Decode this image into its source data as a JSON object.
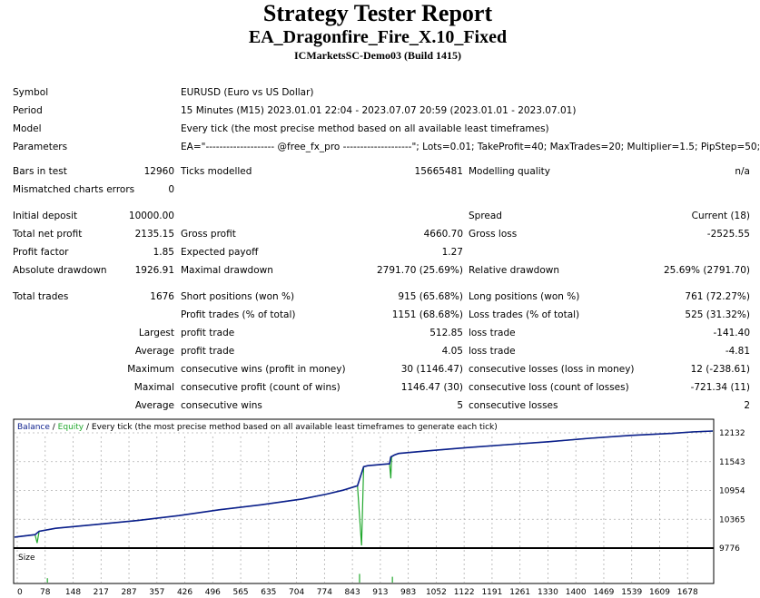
{
  "header": {
    "title": "Strategy Tester Report",
    "expert": "EA_Dragonfire_Fire_X.10_Fixed",
    "server": "ICMarketsSC-Demo03 (Build 1415)"
  },
  "info": {
    "symbol_label": "Symbol",
    "symbol": "EURUSD (Euro vs US Dollar)",
    "period_label": "Period",
    "period": "15 Minutes (M15) 2023.01.01 22:04 - 2023.07.07 20:59 (2023.01.01 - 2023.07.01)",
    "model_label": "Model",
    "model": "Every tick (the most precise method based on all available least timeframes)",
    "parameters_label": "Parameters",
    "parameters": "EA=\"-------------------- @free_fx_pro --------------------\"; Lots=0.01; TakeProfit=40; MaxTrades=20; Multiplier=1.5; PipStep=50;"
  },
  "bars": {
    "bars_label": "Bars in test",
    "bars": "12960",
    "ticks_label": "Ticks modelled",
    "ticks": "15665481",
    "quality_label": "Modelling quality",
    "quality": "n/a",
    "mismatch_label": "Mismatched charts errors",
    "mismatch": "0"
  },
  "results": {
    "initial_deposit_label": "Initial deposit",
    "initial_deposit": "10000.00",
    "spread_label": "Spread",
    "spread": "Current (18)",
    "net_profit_label": "Total net profit",
    "net_profit": "2135.15",
    "gross_profit_label": "Gross profit",
    "gross_profit": "4660.70",
    "gross_loss_label": "Gross loss",
    "gross_loss": "-2525.55",
    "profit_factor_label": "Profit factor",
    "profit_factor": "1.85",
    "expected_payoff_label": "Expected payoff",
    "expected_payoff": "1.27",
    "abs_drawdown_label": "Absolute drawdown",
    "abs_drawdown": "1926.91",
    "max_drawdown_label": "Maximal drawdown",
    "max_drawdown": "2791.70 (25.69%)",
    "rel_drawdown_label": "Relative drawdown",
    "rel_drawdown": "25.69% (2791.70)"
  },
  "trades": {
    "total_label": "Total trades",
    "total": "1676",
    "short_label": "Short positions (won %)",
    "short": "915 (65.68%)",
    "long_label": "Long positions (won %)",
    "long": "761 (72.27%)",
    "profit_trades_label": "Profit trades (% of total)",
    "profit_trades": "1151 (68.68%)",
    "loss_trades_label": "Loss trades (% of total)",
    "loss_trades": "525 (31.32%)",
    "largest_label": "Largest",
    "average_label": "Average",
    "maximum_label": "Maximum",
    "maximal_label": "Maximal",
    "profit_trade_label": "profit trade",
    "loss_trade_label": "loss trade",
    "largest_profit": "512.85",
    "largest_loss": "-141.40",
    "average_profit": "4.05",
    "average_loss": "-4.81",
    "cons_wins_money_label": "consecutive wins (profit in money)",
    "cons_wins_money": "30 (1146.47)",
    "cons_losses_money_label": "consecutive losses (loss in money)",
    "cons_losses_money": "12 (-238.61)",
    "cons_profit_count_label": "consecutive profit (count of wins)",
    "cons_profit_count": "1146.47 (30)",
    "cons_loss_count_label": "consecutive loss (count of losses)",
    "cons_loss_count": "-721.34 (11)",
    "avg_cons_wins_label": "consecutive wins",
    "avg_cons_wins": "5",
    "avg_cons_losses_label": "consecutive losses",
    "avg_cons_losses": "2"
  },
  "chart_data": {
    "type": "line",
    "legend": {
      "balance": "Balance",
      "sep1": " / ",
      "equity": "Equity",
      "sep2": " / ",
      "desc": "Every tick (the most precise method based on all available least timeframes to generate each tick)"
    },
    "size_label": "Size",
    "colors": {
      "balance": "#0b1e8c",
      "equity": "#22a82e",
      "size": "#22a82e",
      "grid": "#b0b0b0"
    },
    "ylim": [
      9776,
      12300
    ],
    "y_ticks": [
      "12132",
      "11543",
      "10954",
      "10365",
      "9776"
    ],
    "y_tick_values": [
      12132,
      11543,
      10954,
      10365,
      9776
    ],
    "x_ticks": [
      "0",
      "78",
      "148",
      "217",
      "287",
      "357",
      "426",
      "496",
      "565",
      "635",
      "704",
      "774",
      "843",
      "913",
      "983",
      "1052",
      "1122",
      "1191",
      "1261",
      "1330",
      "1400",
      "1469",
      "1539",
      "1609",
      "1678"
    ],
    "xlim": [
      0,
      1700
    ],
    "series": [
      {
        "name": "Balance",
        "x": [
          0,
          50,
          60,
          100,
          200,
          300,
          400,
          500,
          600,
          700,
          760,
          800,
          835,
          850,
          860,
          900,
          913,
          916,
          925,
          935,
          1000,
          1100,
          1200,
          1300,
          1400,
          1500,
          1550,
          1600,
          1650,
          1700
        ],
        "y": [
          10000,
          10050,
          10120,
          10180,
          10260,
          10340,
          10440,
          10560,
          10660,
          10780,
          10880,
          10960,
          11050,
          11440,
          11460,
          11490,
          11500,
          11640,
          11680,
          11710,
          11760,
          11830,
          11890,
          11950,
          12020,
          12080,
          12100,
          12120,
          12150,
          12170
        ]
      },
      {
        "name": "Equity",
        "x": [
          0,
          50,
          55,
          60,
          100,
          200,
          300,
          400,
          500,
          600,
          700,
          760,
          800,
          835,
          840,
          845,
          850,
          860,
          900,
          913,
          916,
          918,
          925,
          935,
          1000,
          1100,
          1200,
          1300,
          1400,
          1500,
          1550,
          1600,
          1650,
          1700
        ],
        "y": [
          10000,
          10050,
          9880,
          10120,
          10180,
          10260,
          10340,
          10440,
          10560,
          10660,
          10780,
          10880,
          10960,
          11050,
          10420,
          9830,
          11440,
          11460,
          11490,
          11500,
          11200,
          11640,
          11680,
          11710,
          11760,
          11830,
          11890,
          11950,
          12020,
          12080,
          12100,
          12120,
          12150,
          12170
        ]
      }
    ],
    "size_spikes": [
      {
        "x": 80,
        "v": 0.3
      },
      {
        "x": 840,
        "v": 0.6
      },
      {
        "x": 920,
        "v": 0.4
      }
    ]
  }
}
